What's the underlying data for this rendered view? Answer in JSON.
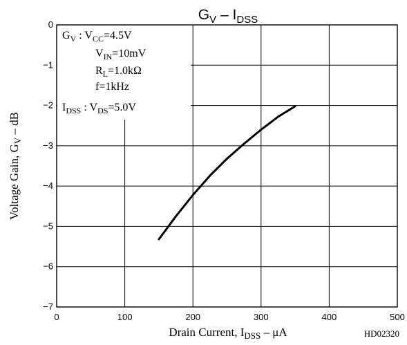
{
  "chart_data": {
    "type": "line",
    "title": {
      "main": "G",
      "sub1": "V",
      "sep": " – ",
      "main2": "I",
      "sub2": "DSS"
    },
    "xlabel": {
      "pre": "Drain Current, I",
      "sub": "DSS",
      "post": " – μA"
    },
    "ylabel": {
      "pre": "Voltage Gain, G",
      "sub": "V",
      "post": " – dB"
    },
    "xlim": [
      0,
      500
    ],
    "ylim": [
      -7,
      0
    ],
    "xticks": [
      "0",
      "100",
      "200",
      "300",
      "400",
      "500"
    ],
    "yticks": [
      "0",
      "−1",
      "−2",
      "−3",
      "−4",
      "−5",
      "−6",
      "−7"
    ],
    "grid": true,
    "series": [
      {
        "x": [
          150,
          175,
          200,
          225,
          250,
          275,
          300,
          325,
          350
        ],
        "y": [
          -5.32,
          -4.75,
          -4.22,
          -3.74,
          -3.32,
          -2.95,
          -2.6,
          -2.28,
          -2.02
        ]
      }
    ],
    "code": "HD02320"
  },
  "conditions": {
    "line1": {
      "pre": "G",
      "sub": "V",
      "mid": " : V",
      "sub2": "CC",
      "post": "=4.5V"
    },
    "line2": {
      "pre": "V",
      "sub": "IN",
      "post": "=10mV"
    },
    "line3": {
      "pre": "R",
      "sub": "L",
      "post": "=1.0kΩ"
    },
    "line4": {
      "text": "f=1kHz"
    },
    "line5": {
      "pre": "I",
      "sub": "DSS",
      "mid": " : V",
      "sub2": "DS",
      "post": "=5.0V"
    }
  }
}
